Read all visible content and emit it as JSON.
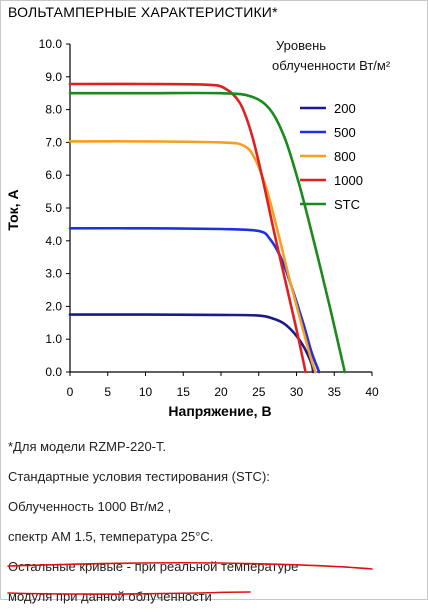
{
  "title": "ВОЛЬТАМПЕРНЫЕ ХАРАКТЕРИСТИКИ*",
  "chart_data": {
    "type": "line",
    "xlabel": "Напряжение, В",
    "ylabel": "Ток, А",
    "xlim": [
      0,
      40
    ],
    "ylim": [
      0,
      10
    ],
    "x_ticks": [
      "0",
      "5",
      "10",
      "15",
      "20",
      "25",
      "30",
      "35",
      "40"
    ],
    "y_ticks": [
      "0.0",
      "1.0",
      "2.0",
      "3.0",
      "4.0",
      "5.0",
      "6.0",
      "7.0",
      "8.0",
      "9.0",
      "10.0"
    ],
    "grid": false,
    "legend_position": "right",
    "legend_title_line1": "Уровень",
    "legend_title_line2": "облученности Вт/м²",
    "series": [
      {
        "name": "200",
        "color": "#1a1a8c",
        "isc": 1.75,
        "voc": 32.2,
        "points": [
          [
            0,
            1.75
          ],
          [
            10,
            1.75
          ],
          [
            20,
            1.74
          ],
          [
            25,
            1.72
          ],
          [
            27,
            1.62
          ],
          [
            28.5,
            1.45
          ],
          [
            30,
            1.1
          ],
          [
            31,
            0.75
          ],
          [
            32,
            0.25
          ],
          [
            32.2,
            0
          ]
        ]
      },
      {
        "name": "500",
        "color": "#1e30e0",
        "isc": 4.38,
        "voc": 33.0,
        "points": [
          [
            0,
            4.38
          ],
          [
            10,
            4.38
          ],
          [
            20,
            4.36
          ],
          [
            25,
            4.3
          ],
          [
            26.5,
            4.05
          ],
          [
            28,
            3.45
          ],
          [
            29.5,
            2.5
          ],
          [
            31,
            1.4
          ],
          [
            32,
            0.6
          ],
          [
            33,
            0
          ]
        ]
      },
      {
        "name": "800",
        "color": "#f5a020",
        "isc": 7.03,
        "voc": 32.5,
        "points": [
          [
            0,
            7.03
          ],
          [
            10,
            7.03
          ],
          [
            20,
            7.0
          ],
          [
            23,
            6.9
          ],
          [
            24.5,
            6.5
          ],
          [
            26,
            5.6
          ],
          [
            27.5,
            4.3
          ],
          [
            29,
            2.9
          ],
          [
            30.5,
            1.6
          ],
          [
            31.8,
            0.5
          ],
          [
            32.5,
            0
          ]
        ]
      },
      {
        "name": "1000",
        "color": "#e02020",
        "isc": 8.78,
        "voc": 31.2,
        "points": [
          [
            0,
            8.78
          ],
          [
            10,
            8.78
          ],
          [
            18,
            8.76
          ],
          [
            20.5,
            8.65
          ],
          [
            22.5,
            8.2
          ],
          [
            24,
            7.3
          ],
          [
            25.5,
            5.9
          ],
          [
            27,
            4.3
          ],
          [
            28.5,
            2.8
          ],
          [
            30,
            1.3
          ],
          [
            31.2,
            0
          ]
        ]
      },
      {
        "name": "STC",
        "color": "#1a8a1a",
        "isc": 8.5,
        "voc": 36.4,
        "points": [
          [
            0,
            8.5
          ],
          [
            10,
            8.5
          ],
          [
            20,
            8.5
          ],
          [
            24,
            8.4
          ],
          [
            26.5,
            8.0
          ],
          [
            28.5,
            7.1
          ],
          [
            30.5,
            5.6
          ],
          [
            32.5,
            3.8
          ],
          [
            34.5,
            1.9
          ],
          [
            35.8,
            0.6
          ],
          [
            36.4,
            0
          ]
        ]
      }
    ]
  },
  "notes": {
    "line1": "*Для модели RZMP-220-T.",
    "line2": "Стандартные условия тестирования (STC):",
    "line3": "Облученность 1000 Вт/м2 ,",
    "line4": "спектр АМ 1.5, температура 25°С.",
    "line5": "Остальные кривые - при реальной температуре",
    "line6": "модуля при данной облученности",
    "underline_color": "#e01010"
  }
}
